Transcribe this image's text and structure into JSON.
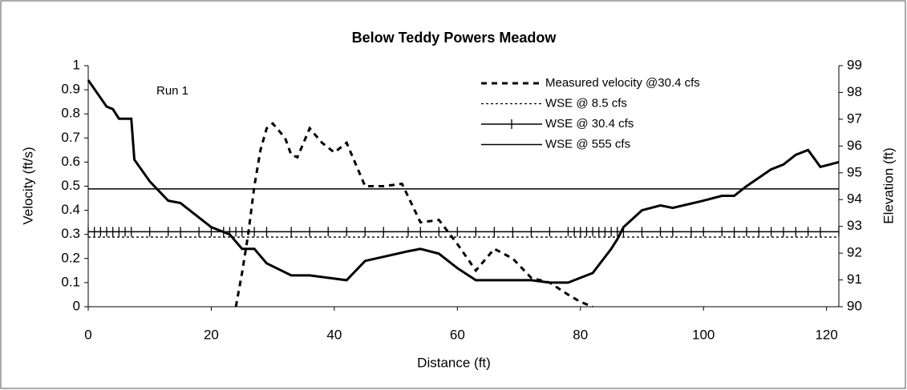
{
  "chart_data": {
    "type": "line",
    "title": "Below Teddy Powers Meadow",
    "xlabel": "Distance (ft)",
    "ylabel": "Velocity (ft/s)",
    "y2label": "Elevation (ft)",
    "annotation": "Run 1",
    "xlim": [
      0,
      122
    ],
    "xticks": [
      0,
      20,
      40,
      60,
      80,
      100,
      120
    ],
    "ylim": [
      0,
      1
    ],
    "yticks": [
      0,
      0.1,
      0.2,
      0.3,
      0.4,
      0.5,
      0.6,
      0.7,
      0.8,
      0.9,
      1
    ],
    "y2lim": [
      90,
      99
    ],
    "y2ticks": [
      90,
      91,
      92,
      93,
      94,
      95,
      96,
      97,
      98,
      99
    ],
    "legend": "upper right",
    "series": [
      {
        "name": "Measured velocity @30.4 cfs",
        "color": "#000000",
        "style": "dashed",
        "axis": "y",
        "x": [
          24,
          25,
          26,
          27,
          28,
          29,
          30,
          32,
          33,
          34,
          36,
          38,
          40,
          42,
          45,
          48,
          51,
          54,
          57,
          60,
          63,
          66,
          69,
          72,
          75,
          78,
          80,
          82
        ],
        "values": [
          0,
          0.14,
          0.3,
          0.5,
          0.65,
          0.74,
          0.76,
          0.7,
          0.63,
          0.62,
          0.74,
          0.68,
          0.64,
          0.68,
          0.5,
          0.5,
          0.51,
          0.35,
          0.36,
          0.26,
          0.15,
          0.24,
          0.2,
          0.12,
          0.1,
          0.05,
          0.02,
          0
        ]
      },
      {
        "name": "WSE @ 8.5 cfs",
        "color": "#000000",
        "style": "dotted",
        "axis": "y2",
        "x": [
          0,
          122
        ],
        "values": [
          92.6,
          92.6
        ]
      },
      {
        "name": "WSE @ 30.4 cfs",
        "color": "#000000",
        "style": "solid",
        "marker": "vline",
        "axis": "y2",
        "x": [
          0,
          1,
          2,
          3,
          4,
          5,
          6,
          7,
          10,
          13,
          15,
          18,
          20,
          22,
          23,
          24,
          25,
          27,
          29,
          33,
          36,
          39,
          42,
          45,
          48,
          52,
          54,
          57,
          60,
          63,
          66,
          69,
          72,
          75,
          78,
          79,
          80,
          81,
          82,
          83,
          84,
          85,
          86,
          87,
          90,
          93,
          95,
          98,
          100,
          103,
          105,
          107,
          109,
          111,
          113,
          115,
          117,
          119,
          122
        ],
        "values": [
          92.8,
          92.8,
          92.8,
          92.8,
          92.8,
          92.8,
          92.8,
          92.8,
          92.8,
          92.8,
          92.8,
          92.8,
          92.8,
          92.8,
          92.8,
          92.8,
          92.8,
          92.8,
          92.8,
          92.8,
          92.8,
          92.8,
          92.8,
          92.8,
          92.8,
          92.8,
          92.8,
          92.8,
          92.8,
          92.8,
          92.8,
          92.8,
          92.8,
          92.8,
          92.8,
          92.8,
          92.8,
          92.8,
          92.8,
          92.8,
          92.8,
          92.8,
          92.8,
          92.8,
          92.8,
          92.8,
          92.8,
          92.8,
          92.8,
          92.8,
          92.8,
          92.8,
          92.8,
          92.8,
          92.8,
          92.8,
          92.8,
          92.8,
          92.8
        ]
      },
      {
        "name": "WSE @ 555 cfs",
        "color": "#000000",
        "style": "solid",
        "axis": "y2",
        "x": [
          0,
          122
        ],
        "values": [
          94.4,
          94.4
        ]
      },
      {
        "color": "#000000",
        "style": "thick",
        "axis": "y2",
        "x": [
          0,
          3,
          4,
          5,
          7,
          7.5,
          10,
          13,
          15,
          20,
          23,
          25,
          27,
          29,
          33,
          36,
          42,
          45,
          52,
          54,
          57,
          60,
          63,
          72,
          75,
          78,
          82,
          85,
          86,
          87,
          90,
          93,
          95,
          100,
          103,
          105,
          107,
          111,
          113,
          115,
          117,
          119,
          122
        ],
        "values": [
          98.46,
          97.47,
          97.38,
          97.02,
          97.02,
          95.49,
          94.68,
          93.96,
          93.87,
          92.97,
          92.7,
          92.16,
          92.16,
          91.62,
          91.17,
          91.17,
          90.99,
          91.71,
          92.07,
          92.16,
          91.98,
          91.44,
          90.99,
          90.99,
          90.9,
          90.9,
          91.26,
          92.16,
          92.52,
          92.97,
          93.6,
          93.78,
          93.69,
          93.96,
          94.14,
          94.14,
          94.5,
          95.13,
          95.31,
          95.67,
          95.85,
          95.22,
          95.4
        ]
      }
    ]
  }
}
